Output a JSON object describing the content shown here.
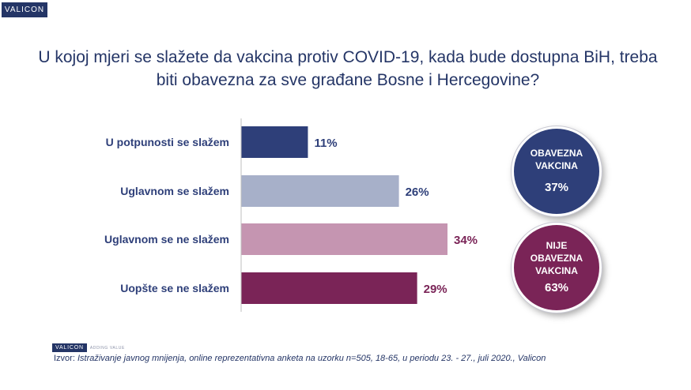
{
  "brand": {
    "logo": "VALICON",
    "tagline": "ADDING VALUE"
  },
  "title_line1": "U kojoj mjeri se slažete da vakcina protiv COVID-19, kada bude dostupna BiH, treba",
  "title_line2": "biti obavezna za sve građane Bosne i Hercegovine?",
  "chart_data": {
    "type": "bar",
    "orientation": "horizontal",
    "categories": [
      "U potpunosti se slažem",
      "Uglavnom se slažem",
      "Uglavnom se ne slažem",
      "Uopšte se ne slažem"
    ],
    "values": [
      11,
      26,
      34,
      29
    ],
    "data_labels": [
      "11%",
      "26%",
      "34%",
      "29%"
    ],
    "colors": [
      "#2e3f79",
      "#a7b0c9",
      "#c595b1",
      "#7a2457"
    ],
    "label_colors": [
      "#2e3f79",
      "#2e3f79",
      "#7a2457",
      "#7a2457"
    ],
    "xlim": [
      0,
      34
    ],
    "grid": false,
    "legend": "none"
  },
  "summary": [
    {
      "label_lines": [
        "OBAVEZNA",
        "VAKCINA"
      ],
      "value": "37%",
      "color": "#2e3f79"
    },
    {
      "label_lines": [
        "NIJE",
        "OBAVEZNA",
        "VAKCINA"
      ],
      "value": "63%",
      "color": "#7a2457"
    }
  ],
  "source": {
    "prefix": "Izvor: ",
    "text": "Istraživanje javnog mnijenja, online reprezentativna anketa na uzorku n=505, 18-65, u periodu 23. - 27., juli 2020., Valicon"
  }
}
